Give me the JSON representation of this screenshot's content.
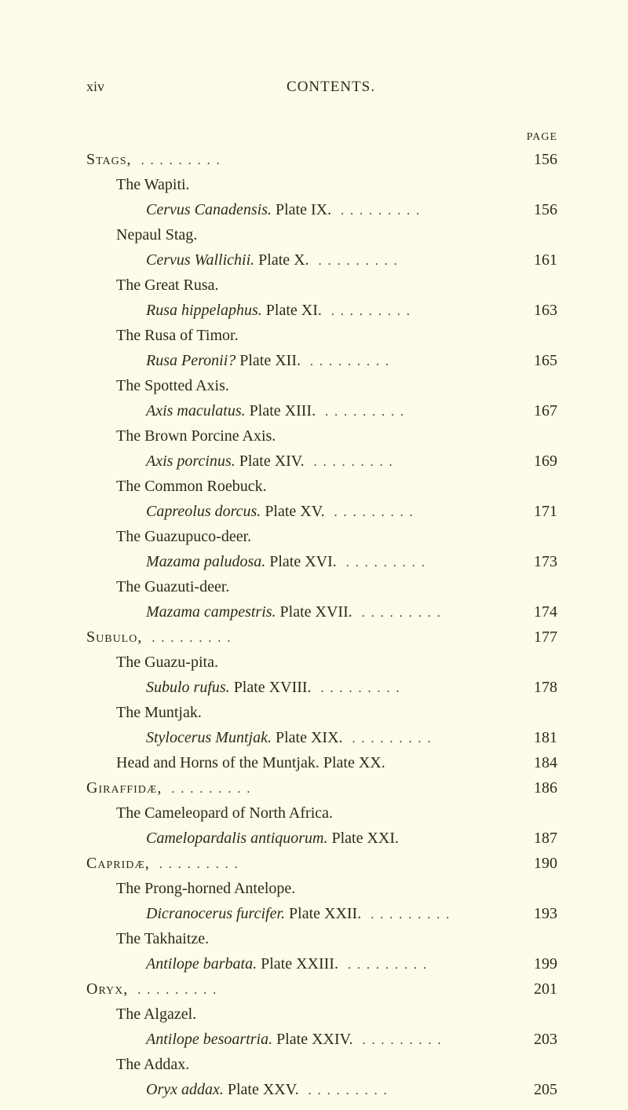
{
  "header": {
    "pageNumber": "xiv",
    "title": "CONTENTS.",
    "pageLabel": "PAGE"
  },
  "entries": [
    {
      "indent": 0,
      "section": true,
      "label": "Stags,",
      "dots": true,
      "page": "156"
    },
    {
      "indent": 1,
      "label": "The Wapiti."
    },
    {
      "indent": 2,
      "italicPrefix": "Cervus Canadensis.",
      "suffix": "  Plate IX.",
      "dots": true,
      "page": "156"
    },
    {
      "indent": 1,
      "label": "Nepaul Stag."
    },
    {
      "indent": 2,
      "italicPrefix": "Cervus Wallichii.",
      "suffix": "  Plate X.",
      "dots": true,
      "page": "161"
    },
    {
      "indent": 1,
      "label": "The Great Rusa."
    },
    {
      "indent": 2,
      "italicPrefix": "Rusa hippelaphus.",
      "suffix": "  Plate XI.",
      "dots": true,
      "page": "163"
    },
    {
      "indent": 1,
      "label": "The Rusa of Timor."
    },
    {
      "indent": 2,
      "italicPrefix": "Rusa Peronii?",
      "suffix": "  Plate XII.",
      "dots": true,
      "page": "165"
    },
    {
      "indent": 1,
      "label": "The Spotted Axis."
    },
    {
      "indent": 2,
      "italicPrefix": "Axis maculatus.",
      "suffix": "  Plate XIII.",
      "dots": true,
      "page": "167"
    },
    {
      "indent": 1,
      "label": "The Brown Porcine Axis."
    },
    {
      "indent": 2,
      "italicPrefix": "Axis porcinus.",
      "suffix": "  Plate XIV.",
      "dots": true,
      "page": "169"
    },
    {
      "indent": 1,
      "label": "The Common Roebuck."
    },
    {
      "indent": 2,
      "italicPrefix": "Capreolus dorcus.",
      "suffix": "  Plate XV.",
      "dots": true,
      "page": "171"
    },
    {
      "indent": 1,
      "label": "The Guazupuco-deer."
    },
    {
      "indent": 2,
      "italicPrefix": "Mazama paludosa.",
      "suffix": "  Plate XVI.",
      "dots": true,
      "page": "173"
    },
    {
      "indent": 1,
      "label": "The Guazuti-deer."
    },
    {
      "indent": 2,
      "italicPrefix": "Mazama campestris.",
      "suffix": "  Plate XVII.",
      "dots": true,
      "page": "174"
    },
    {
      "indent": 0,
      "section": true,
      "label": "Subulo,",
      "dots": true,
      "page": "177"
    },
    {
      "indent": 1,
      "label": "The Guazu-pita."
    },
    {
      "indent": 2,
      "italicPrefix": "Subulo rufus.",
      "suffix": "  Plate XVIII.",
      "dots": true,
      "page": "178"
    },
    {
      "indent": 1,
      "label": "The Muntjak."
    },
    {
      "indent": 2,
      "italicPrefix": "Stylocerus Muntjak.",
      "suffix": "  Plate XIX.",
      "dots": true,
      "page": "181"
    },
    {
      "indent": 1,
      "label": "Head and Horns of the Muntjak.   Plate XX.",
      "dots": false,
      "page": "184"
    },
    {
      "indent": 0,
      "section": true,
      "label": "Giraffidæ,",
      "dots": true,
      "page": "186"
    },
    {
      "indent": 1,
      "label": "The Cameleopard of North Africa."
    },
    {
      "indent": 2,
      "italicPrefix": "Camelopardalis antiquorum.",
      "suffix": "  Plate XXI.",
      "dots": false,
      "page": "187"
    },
    {
      "indent": 0,
      "section": true,
      "label": "Capridæ,",
      "dots": true,
      "page": "190"
    },
    {
      "indent": 1,
      "label": "The Prong-horned Antelope."
    },
    {
      "indent": 2,
      "italicPrefix": "Dicranocerus furcifer.",
      "suffix": "  Plate XXII.",
      "dots": true,
      "page": "193"
    },
    {
      "indent": 1,
      "label": "The Takhaitze."
    },
    {
      "indent": 2,
      "italicPrefix": "Antilope barbata.",
      "suffix": "  Plate XXIII.",
      "dots": true,
      "page": "199"
    },
    {
      "indent": 0,
      "section": true,
      "label": "Oryx,",
      "dots": true,
      "page": "201"
    },
    {
      "indent": 1,
      "label": "The Algazel."
    },
    {
      "indent": 2,
      "italicPrefix": "Antilope besoartria.",
      "suffix": "  Plate XXIV.",
      "dots": true,
      "page": "203"
    },
    {
      "indent": 1,
      "label": "The Addax."
    },
    {
      "indent": 2,
      "italicPrefix": "Oryx addax.",
      "suffix": "  Plate XXV.",
      "dots": true,
      "page": "205"
    }
  ]
}
